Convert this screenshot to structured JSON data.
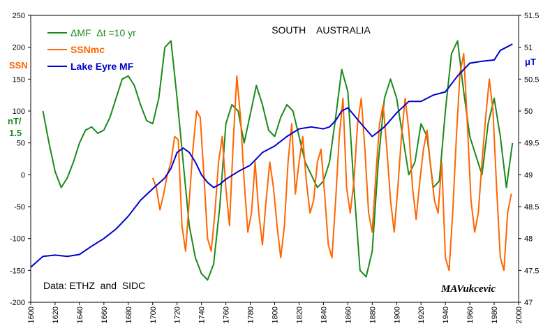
{
  "chart_data": {
    "type": "line",
    "title": "SOUTH    AUSTRALIA",
    "colors": {
      "dmf": "#1a8a1a",
      "ssn": "#ff6600",
      "lake": "#0000cc"
    },
    "left_axis": {
      "ticks": [
        "250",
        "200",
        "150",
        "100",
        "50",
        "0",
        "-50",
        "-100",
        "-150",
        "-200"
      ],
      "range": [
        -200,
        250
      ],
      "titles": [
        "SSN",
        "nT/",
        "1.5"
      ]
    },
    "right_axis": {
      "ticks": [
        "51.5",
        "51",
        "50.5",
        "50",
        "49.5",
        "49",
        "48.5",
        "48",
        "47.5",
        "47"
      ],
      "range": [
        47,
        51.5
      ],
      "title": "μT"
    },
    "x_axis": {
      "ticks": [
        "1600",
        "1620",
        "1640",
        "1660",
        "1680",
        "1700",
        "1720",
        "1740",
        "1760",
        "1780",
        "1800",
        "1820",
        "1840",
        "1860",
        "1880",
        "1900",
        "1920",
        "1940",
        "1960",
        "1980",
        "2000"
      ],
      "range": [
        1600,
        2000
      ]
    },
    "legend": {
      "placement": "top-left",
      "items": [
        {
          "label": "ΔMF  Δt =10 yr",
          "color": "#1a8a1a"
        },
        {
          "label": "SSNmc",
          "color": "#ff6600"
        },
        {
          "label": "Lake Eyre MF",
          "color": "#0000cc"
        }
      ]
    },
    "annotations": {
      "data_source": "Data: ETHZ  and  SIDC",
      "signature": "MAVukcevic"
    },
    "series": [
      {
        "name": "ΔMF  Δt =10 yr",
        "axis": "left",
        "x": [
          1610,
          1615,
          1620,
          1625,
          1630,
          1635,
          1640,
          1645,
          1650,
          1655,
          1660,
          1665,
          1670,
          1675,
          1680,
          1685,
          1690,
          1695,
          1700,
          1705,
          1710,
          1715,
          1720,
          1725,
          1730,
          1735,
          1740,
          1745,
          1750,
          1755,
          1760,
          1765,
          1770,
          1775,
          1780,
          1785,
          1790,
          1795,
          1800,
          1805,
          1810,
          1815,
          1820,
          1825,
          1830,
          1835,
          1840,
          1845,
          1850,
          1855,
          1860,
          1865,
          1870,
          1875,
          1880,
          1885,
          1890,
          1895,
          1900,
          1905,
          1910,
          1915,
          1920,
          1925,
          1930,
          1935,
          1940,
          1945,
          1950,
          1955,
          1960,
          1965,
          1970,
          1975,
          1980,
          1985,
          1990,
          1995
        ],
        "values": [
          100,
          50,
          5,
          -20,
          -5,
          20,
          50,
          70,
          75,
          65,
          70,
          90,
          120,
          150,
          155,
          140,
          110,
          85,
          80,
          120,
          200,
          210,
          120,
          20,
          -80,
          -130,
          -155,
          -165,
          -140,
          -50,
          80,
          110,
          100,
          50,
          95,
          140,
          110,
          70,
          60,
          90,
          110,
          100,
          60,
          20,
          0,
          -20,
          -10,
          20,
          90,
          165,
          130,
          -20,
          -150,
          -160,
          -120,
          20,
          120,
          150,
          120,
          60,
          0,
          20,
          80,
          60,
          -20,
          -10,
          100,
          190,
          210,
          130,
          60,
          30,
          0,
          80,
          120,
          60,
          -20,
          50
        ]
      },
      {
        "name": "SSNmc",
        "axis": "left",
        "x": [
          1700,
          1703,
          1706,
          1709,
          1712,
          1715,
          1718,
          1721,
          1724,
          1727,
          1730,
          1733,
          1736,
          1739,
          1742,
          1745,
          1748,
          1751,
          1754,
          1757,
          1760,
          1763,
          1766,
          1769,
          1772,
          1775,
          1778,
          1781,
          1784,
          1787,
          1790,
          1793,
          1796,
          1799,
          1802,
          1805,
          1808,
          1811,
          1814,
          1817,
          1820,
          1823,
          1826,
          1829,
          1832,
          1835,
          1838,
          1841,
          1844,
          1847,
          1850,
          1853,
          1856,
          1859,
          1862,
          1865,
          1868,
          1871,
          1874,
          1877,
          1880,
          1883,
          1886,
          1889,
          1892,
          1895,
          1898,
          1901,
          1904,
          1907,
          1910,
          1913,
          1916,
          1919,
          1922,
          1925,
          1928,
          1931,
          1934,
          1937,
          1940,
          1943,
          1946,
          1949,
          1952,
          1955,
          1958,
          1961,
          1964,
          1967,
          1970,
          1973,
          1976,
          1979,
          1982,
          1985,
          1988,
          1991,
          1994
        ],
        "values": [
          -5,
          -20,
          -55,
          -30,
          0,
          20,
          60,
          55,
          -80,
          -120,
          -40,
          40,
          100,
          90,
          0,
          -100,
          -120,
          -60,
          20,
          60,
          -20,
          -80,
          50,
          155,
          90,
          -10,
          -90,
          -60,
          20,
          -60,
          -110,
          -40,
          20,
          -20,
          -80,
          -130,
          -80,
          20,
          80,
          -30,
          20,
          60,
          -10,
          -60,
          -40,
          20,
          40,
          -30,
          -110,
          -130,
          -40,
          60,
          120,
          -20,
          -60,
          -10,
          80,
          120,
          40,
          -60,
          -90,
          0,
          80,
          110,
          40,
          -40,
          -90,
          -20,
          60,
          120,
          70,
          -20,
          -70,
          -10,
          40,
          70,
          10,
          -40,
          -60,
          20,
          -130,
          -150,
          -60,
          60,
          160,
          190,
          80,
          -40,
          -90,
          -60,
          20,
          90,
          150,
          100,
          -20,
          -130,
          -150,
          -60,
          -30
        ]
      },
      {
        "name": "Lake Eyre MF",
        "axis": "right",
        "x": [
          1600,
          1610,
          1620,
          1630,
          1640,
          1650,
          1660,
          1670,
          1680,
          1690,
          1700,
          1710,
          1715,
          1720,
          1725,
          1730,
          1735,
          1740,
          1745,
          1750,
          1755,
          1760,
          1770,
          1780,
          1790,
          1800,
          1810,
          1820,
          1830,
          1840,
          1845,
          1850,
          1855,
          1860,
          1870,
          1880,
          1890,
          1900,
          1910,
          1920,
          1930,
          1940,
          1950,
          1960,
          1970,
          1980,
          1985,
          1990,
          1995
        ],
        "values": [
          47.55,
          47.72,
          47.74,
          47.72,
          47.75,
          47.88,
          48.0,
          48.15,
          48.35,
          48.6,
          48.78,
          48.95,
          49.1,
          49.35,
          49.42,
          49.35,
          49.2,
          49.0,
          48.88,
          48.8,
          48.85,
          48.93,
          49.05,
          49.15,
          49.35,
          49.45,
          49.6,
          49.72,
          49.75,
          49.72,
          49.75,
          49.85,
          50.0,
          50.05,
          49.82,
          49.6,
          49.75,
          49.97,
          50.15,
          50.15,
          50.25,
          50.3,
          50.55,
          50.75,
          50.78,
          50.8,
          50.95,
          51.0,
          51.05
        ]
      }
    ]
  }
}
